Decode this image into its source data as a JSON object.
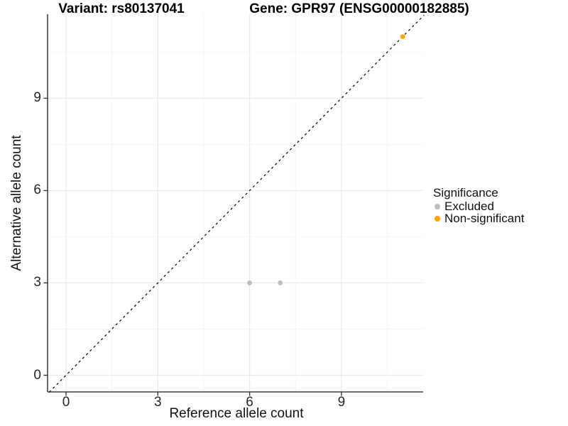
{
  "chart_data": {
    "type": "scatter",
    "title_variant": "Variant: rs80137041",
    "title_gene": "Gene: GPR97 (ENSG00000182885)",
    "xlabel": "Reference allele count",
    "ylabel": "Alternative allele count",
    "x": {
      "ticks": [
        0,
        3,
        6,
        9
      ],
      "minor": [
        1.5,
        4.5,
        7.5,
        10.5
      ],
      "lim": [
        -0.6,
        11.7
      ]
    },
    "y": {
      "ticks": [
        0,
        3,
        6,
        9
      ],
      "minor": [
        1.5,
        4.5,
        7.5,
        10.5
      ],
      "lim": [
        -0.55,
        11.73
      ]
    },
    "series": [
      {
        "name": "Excluded",
        "color": "#BEBEBE",
        "points": [
          [
            6,
            3
          ],
          [
            7,
            3
          ]
        ]
      },
      {
        "name": "Non-significant",
        "color": "#FFA500",
        "points": [
          [
            11,
            11
          ]
        ]
      }
    ],
    "identity_line": {
      "style": "dashed",
      "color": "#111111",
      "from": -0.55,
      "to": 11.7
    },
    "grid": {
      "major_color": "#E9E9E9",
      "minor_color": "#F4F4F4",
      "grid_on": true
    },
    "axis_color": "#595959",
    "tick_color": "#333333",
    "point_radius": 3.4,
    "legend": {
      "title": "Significance",
      "position": "right",
      "items": [
        {
          "label": "Excluded",
          "color": "#BEBEBE"
        },
        {
          "label": "Non-significant",
          "color": "#FFA500"
        }
      ]
    }
  }
}
